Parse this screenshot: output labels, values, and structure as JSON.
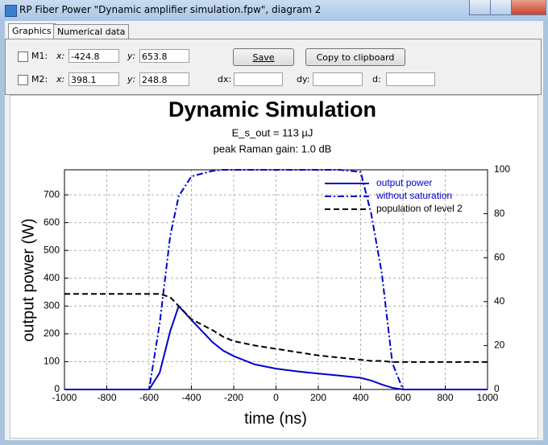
{
  "window": {
    "title": "RP Fiber Power \"Dynamic amplifier simulation.fpw\", diagram 2"
  },
  "tabs": [
    "Graphics",
    "Numerical data"
  ],
  "field_labels": {
    "x": "x:",
    "y": "y:",
    "dx": "dx:",
    "dy": "dy:",
    "d": "d:"
  },
  "markers": [
    {
      "label": "M1:",
      "x": "-424.8",
      "y": "653.8"
    },
    {
      "label": "M2:",
      "x": "398.1",
      "y": "248.8"
    }
  ],
  "buttons": [
    "Save",
    "Copy to clipboard"
  ],
  "chart_data": {
    "type": "line",
    "title": "Dynamic Simulation",
    "subtitle": [
      "E_s_out = 113 µJ",
      "peak Raman gain: 1.0 dB"
    ],
    "xlabel": "time (ns)",
    "ylabel": "output power (W)",
    "x": [
      -1000,
      -800,
      -600,
      -550,
      -500,
      -460,
      -400,
      -300,
      -250,
      -200,
      -100,
      0,
      100,
      200,
      300,
      400,
      450,
      500,
      550,
      600,
      800,
      1000
    ],
    "series": [
      {
        "name": "output power",
        "color": "#0000cc",
        "style": "solid",
        "values": [
          0,
          0,
          0,
          60,
          210,
          300,
          250,
          170,
          140,
          120,
          90,
          75,
          65,
          57,
          50,
          42,
          32,
          18,
          6,
          0,
          0,
          0
        ]
      },
      {
        "name": "without saturation",
        "color": "#0000cc",
        "style": "dashdot",
        "axis": "y2",
        "values": [
          0,
          0,
          0,
          30,
          70,
          88,
          97,
          99.5,
          100,
          100,
          100,
          100,
          100,
          100,
          100,
          99,
          80,
          53,
          12,
          0,
          0,
          0
        ]
      },
      {
        "name": "population of level 2",
        "color": "#000000",
        "style": "dashed",
        "axis": "y2",
        "values": [
          43.5,
          43.5,
          43.5,
          43.5,
          42,
          38,
          32,
          27,
          24,
          22,
          20,
          18.5,
          17,
          15.5,
          14.5,
          13.5,
          13,
          13,
          12.5,
          12.5,
          12.5,
          12.5
        ]
      }
    ],
    "xlim": [
      -1000,
      1000
    ],
    "xticks": [
      -1000,
      -800,
      -600,
      -400,
      -200,
      0,
      200,
      400,
      600,
      800,
      1000
    ],
    "ylim": [
      0,
      790
    ],
    "yticks": [
      0,
      100,
      200,
      300,
      400,
      500,
      600,
      700
    ],
    "y2lim": [
      0,
      100
    ],
    "y2ticks": [
      0,
      20,
      40,
      60,
      80,
      100
    ],
    "grid": true,
    "legend": "top-right"
  }
}
